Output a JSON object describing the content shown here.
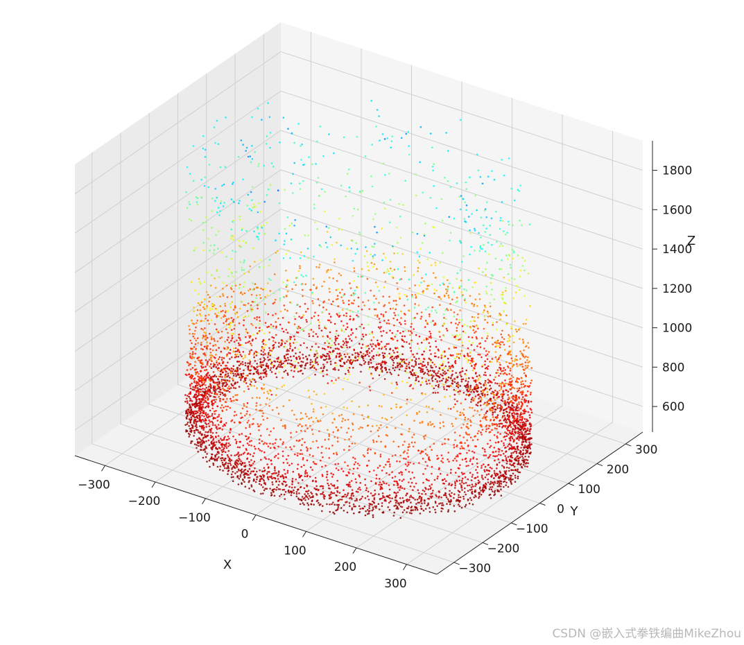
{
  "chart_data": {
    "type": "scatter",
    "projection": "3d",
    "xlabel": "X",
    "ylabel": "Y",
    "zlabel": "Z",
    "x_ticks": [
      -300,
      -200,
      -100,
      0,
      100,
      200,
      300
    ],
    "x_tick_labels": [
      "−300",
      "−200",
      "−100",
      "0",
      "100",
      "200",
      "300"
    ],
    "y_ticks": [
      -300,
      -200,
      -100,
      0,
      100,
      200,
      300
    ],
    "y_tick_labels": [
      "−300",
      "−200",
      "−100",
      "0",
      "100",
      "200",
      "300"
    ],
    "z_ticks": [
      600,
      800,
      1000,
      1200,
      1400,
      1600,
      1800
    ],
    "z_tick_labels": [
      "600",
      "800",
      "1000",
      "1200",
      "1400",
      "1600",
      "1800"
    ],
    "xlim": [
      -360,
      360
    ],
    "ylim": [
      -360,
      360
    ],
    "zlim": [
      470,
      1950
    ],
    "grid": true,
    "colormap": "jet",
    "color_by": "distance from center (low = blue, high = red)",
    "series": [
      {
        "description": "annular ring of points; density concentrated at the outer edge near z≈500",
        "center": [
          0,
          0
        ],
        "outer_radius": 300,
        "radius_range_bottom": [
          180,
          300
        ],
        "z_bottom_range": [
          480,
          560
        ],
        "z_top_range": [
          1500,
          1850
        ],
        "point_count_approx": 6000
      }
    ]
  },
  "watermark": "CSDN @嵌入式拳铁编曲MikeZhou"
}
